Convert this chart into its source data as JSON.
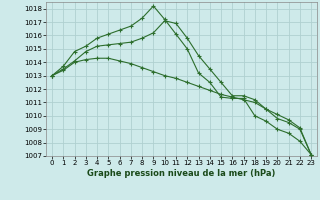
{
  "title": "Graphe pression niveau de la mer (hPa)",
  "background_color": "#ceeaea",
  "grid_color": "#b0d0d0",
  "line_color": "#2d6e2d",
  "xlim": [
    -0.5,
    23.5
  ],
  "ylim": [
    1007,
    1018.5
  ],
  "yticks": [
    1007,
    1008,
    1009,
    1010,
    1011,
    1012,
    1013,
    1014,
    1015,
    1016,
    1017,
    1018
  ],
  "xticks": [
    0,
    1,
    2,
    3,
    4,
    5,
    6,
    7,
    8,
    9,
    10,
    11,
    12,
    13,
    14,
    15,
    16,
    17,
    18,
    19,
    20,
    21,
    22,
    23
  ],
  "line1_x": [
    0,
    1,
    2,
    3,
    4,
    5,
    6,
    7,
    8,
    9,
    10,
    11,
    12,
    13,
    14,
    15,
    16,
    17,
    18,
    19,
    20,
    21,
    22,
    23
  ],
  "line1_y": [
    1013.0,
    1013.7,
    1014.8,
    1015.2,
    1015.8,
    1016.1,
    1016.4,
    1016.7,
    1017.3,
    1018.2,
    1017.2,
    1016.1,
    1015.0,
    1013.2,
    1012.5,
    1011.4,
    1011.3,
    1011.3,
    1010.0,
    1009.6,
    1009.0,
    1008.7,
    1008.1,
    1007.1
  ],
  "line2_x": [
    0,
    1,
    2,
    3,
    4,
    5,
    6,
    7,
    8,
    9,
    10,
    11,
    12,
    13,
    14,
    15,
    16,
    17,
    18,
    19,
    20,
    21,
    22,
    23
  ],
  "line2_y": [
    1013.0,
    1013.4,
    1014.0,
    1014.2,
    1014.3,
    1014.3,
    1014.1,
    1013.9,
    1013.6,
    1013.3,
    1013.0,
    1012.8,
    1012.5,
    1012.2,
    1011.9,
    1011.6,
    1011.4,
    1011.2,
    1011.0,
    1010.5,
    1010.1,
    1009.7,
    1009.1,
    1007.1
  ],
  "line3_x": [
    0,
    1,
    2,
    3,
    4,
    5,
    6,
    7,
    8,
    9,
    10,
    11,
    12,
    13,
    14,
    15,
    16,
    17,
    18,
    19,
    20,
    21,
    22,
    23
  ],
  "line3_y": [
    1013.0,
    1013.5,
    1014.1,
    1014.8,
    1015.2,
    1015.3,
    1015.4,
    1015.5,
    1015.8,
    1016.2,
    1017.1,
    1016.9,
    1015.8,
    1014.5,
    1013.5,
    1012.5,
    1011.5,
    1011.5,
    1011.2,
    1010.5,
    1009.8,
    1009.5,
    1009.0,
    1007.1
  ],
  "tick_fontsize": 5,
  "label_fontsize": 6,
  "lw": 0.8,
  "ms": 2.5,
  "mew": 0.8
}
